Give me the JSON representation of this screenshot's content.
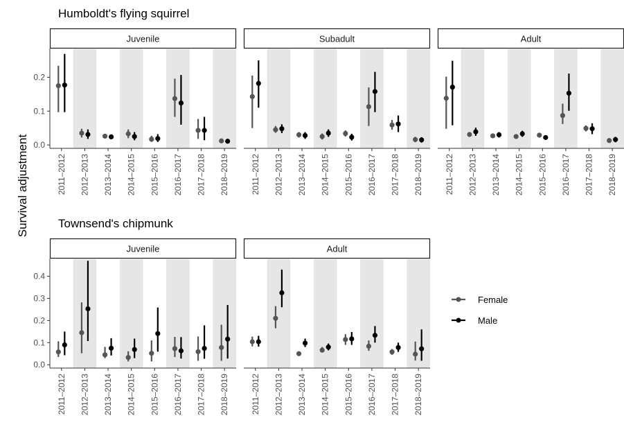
{
  "chart_data": {
    "type": "errorbar-dot",
    "ylabel": "Survival adjustment",
    "legend": {
      "placement": "right",
      "entries": [
        {
          "name": "Female",
          "color": "#555555"
        },
        {
          "name": "Male",
          "color": "#000000"
        }
      ]
    },
    "categories": [
      "2011–2012",
      "2012–2013",
      "2013–2014",
      "2014–2015",
      "2015–2016",
      "2016–2017",
      "2017–2018",
      "2018–2019"
    ],
    "shaded_categories": [
      1,
      3,
      5,
      7
    ],
    "sections": [
      {
        "title": "Humboldt's flying squirrel",
        "ylim": [
          -0.01,
          0.285
        ],
        "yticks": [
          0.0,
          0.1,
          0.2
        ],
        "ytick_labels": [
          "0.0",
          "0.1",
          "0.2"
        ],
        "panels": [
          {
            "title": "Juvenile",
            "series": [
              {
                "name": "Female",
                "mean": [
                  0.175,
                  0.035,
                  0.026,
                  0.033,
                  0.017,
                  0.137,
                  0.043,
                  0.012
                ],
                "lower": [
                  0.097,
                  0.022,
                  0.02,
                  0.02,
                  0.009,
                  0.083,
                  0.018,
                  0.006
                ],
                "upper": [
                  0.234,
                  0.048,
                  0.032,
                  0.046,
                  0.027,
                  0.196,
                  0.077,
                  0.018
                ]
              },
              {
                "name": "Male",
                "mean": [
                  0.177,
                  0.031,
                  0.024,
                  0.025,
                  0.019,
                  0.124,
                  0.043,
                  0.011
                ],
                "lower": [
                  0.097,
                  0.018,
                  0.018,
                  0.014,
                  0.009,
                  0.06,
                  0.014,
                  0.005
                ],
                "upper": [
                  0.269,
                  0.046,
                  0.03,
                  0.038,
                  0.032,
                  0.207,
                  0.083,
                  0.018
                ]
              }
            ]
          },
          {
            "title": "Subadult",
            "series": [
              {
                "name": "Female",
                "mean": [
                  0.143,
                  0.045,
                  0.03,
                  0.025,
                  0.034,
                  0.113,
                  0.059,
                  0.016
                ],
                "lower": [
                  0.05,
                  0.036,
                  0.022,
                  0.016,
                  0.025,
                  0.056,
                  0.045,
                  0.008
                ],
                "upper": [
                  0.205,
                  0.056,
                  0.038,
                  0.034,
                  0.043,
                  0.17,
                  0.074,
                  0.024
                ]
              },
              {
                "name": "Male",
                "mean": [
                  0.182,
                  0.048,
                  0.028,
                  0.035,
                  0.023,
                  0.158,
                  0.062,
                  0.015
                ],
                "lower": [
                  0.11,
                  0.035,
                  0.018,
                  0.024,
                  0.013,
                  0.097,
                  0.038,
                  0.007
                ],
                "upper": [
                  0.25,
                  0.061,
                  0.038,
                  0.046,
                  0.033,
                  0.216,
                  0.087,
                  0.023
                ]
              }
            ]
          },
          {
            "title": "Adult",
            "series": [
              {
                "name": "Female",
                "mean": [
                  0.138,
                  0.031,
                  0.027,
                  0.025,
                  0.029,
                  0.087,
                  0.049,
                  0.013
                ],
                "lower": [
                  0.048,
                  0.024,
                  0.022,
                  0.02,
                  0.022,
                  0.062,
                  0.04,
                  0.009
                ],
                "upper": [
                  0.202,
                  0.038,
                  0.032,
                  0.03,
                  0.036,
                  0.122,
                  0.058,
                  0.017
                ]
              },
              {
                "name": "Male",
                "mean": [
                  0.171,
                  0.039,
                  0.03,
                  0.033,
                  0.022,
                  0.153,
                  0.048,
                  0.016
                ],
                "lower": [
                  0.058,
                  0.027,
                  0.022,
                  0.024,
                  0.016,
                  0.101,
                  0.032,
                  0.008
                ],
                "upper": [
                  0.249,
                  0.051,
                  0.038,
                  0.042,
                  0.028,
                  0.211,
                  0.064,
                  0.024
                ]
              }
            ]
          }
        ]
      },
      {
        "title": "Townsend's chipmunk",
        "ylim": [
          -0.015,
          0.48
        ],
        "yticks": [
          0.0,
          0.1,
          0.2,
          0.3,
          0.4
        ],
        "ytick_labels": [
          "0.0",
          "0.1",
          "0.2",
          "0.3",
          "0.4"
        ],
        "panels": [
          {
            "title": "Juvenile",
            "series": [
              {
                "name": "Female",
                "mean": [
                  0.058,
                  0.145,
                  0.045,
                  0.033,
                  0.052,
                  0.073,
                  0.059,
                  0.078
                ],
                "lower": [
                  0.035,
                  0.052,
                  0.03,
                  0.015,
                  0.015,
                  0.035,
                  0.018,
                  0.018
                ],
                "upper": [
                  0.106,
                  0.282,
                  0.081,
                  0.061,
                  0.11,
                  0.126,
                  0.128,
                  0.181
                ]
              },
              {
                "name": "Male",
                "mean": [
                  0.09,
                  0.253,
                  0.075,
                  0.069,
                  0.141,
                  0.063,
                  0.074,
                  0.116
                ],
                "lower": [
                  0.043,
                  0.107,
                  0.042,
                  0.03,
                  0.059,
                  0.028,
                  0.027,
                  0.028
                ],
                "upper": [
                  0.15,
                  0.47,
                  0.12,
                  0.118,
                  0.259,
                  0.125,
                  0.178,
                  0.27
                ]
              }
            ]
          },
          {
            "title": "Adult",
            "series": [
              {
                "name": "Female",
                "mean": [
                  0.104,
                  0.21,
                  0.05,
                  0.066,
                  0.114,
                  0.084,
                  0.058,
                  0.048
                ],
                "lower": [
                  0.083,
                  0.165,
                  0.042,
                  0.056,
                  0.09,
                  0.063,
                  0.045,
                  0.019
                ],
                "upper": [
                  0.127,
                  0.265,
                  0.06,
                  0.08,
                  0.138,
                  0.11,
                  0.071,
                  0.105
                ]
              },
              {
                "name": "Male",
                "mean": [
                  0.104,
                  0.325,
                  0.098,
                  0.08,
                  0.117,
                  0.133,
                  0.078,
                  0.072
                ],
                "lower": [
                  0.082,
                  0.26,
                  0.08,
                  0.065,
                  0.09,
                  0.1,
                  0.058,
                  0.018
                ],
                "upper": [
                  0.131,
                  0.43,
                  0.118,
                  0.096,
                  0.148,
                  0.175,
                  0.1,
                  0.16
                ]
              }
            ]
          }
        ]
      }
    ]
  }
}
